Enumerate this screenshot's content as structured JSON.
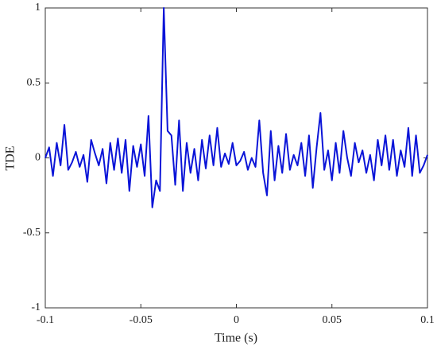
{
  "chart_data": {
    "type": "line",
    "xlabel": "Time (s)",
    "ylabel": "TDE",
    "xlim": [
      -0.1,
      0.1
    ],
    "ylim": [
      -1,
      1
    ],
    "xticks": [
      -0.1,
      -0.05,
      0,
      0.05,
      0.1
    ],
    "yticks": [
      -1,
      -0.5,
      0,
      0.5,
      1
    ],
    "grid": false,
    "series": [
      {
        "name": "TDE",
        "color": "#0a14d8",
        "x": [
          -0.1,
          -0.098,
          -0.096,
          -0.094,
          -0.092,
          -0.09,
          -0.088,
          -0.086,
          -0.084,
          -0.082,
          -0.08,
          -0.078,
          -0.076,
          -0.074,
          -0.072,
          -0.07,
          -0.068,
          -0.066,
          -0.064,
          -0.062,
          -0.06,
          -0.058,
          -0.056,
          -0.054,
          -0.052,
          -0.05,
          -0.048,
          -0.046,
          -0.044,
          -0.042,
          -0.04,
          -0.038,
          -0.036,
          -0.034,
          -0.032,
          -0.03,
          -0.028,
          -0.026,
          -0.024,
          -0.022,
          -0.02,
          -0.018,
          -0.016,
          -0.014,
          -0.012,
          -0.01,
          -0.008,
          -0.006,
          -0.004,
          -0.002,
          0,
          0.002,
          0.004,
          0.006,
          0.008,
          0.01,
          0.012,
          0.014,
          0.016,
          0.018,
          0.02,
          0.022,
          0.024,
          0.026,
          0.028,
          0.03,
          0.032,
          0.034,
          0.036,
          0.038,
          0.04,
          0.042,
          0.044,
          0.046,
          0.048,
          0.05,
          0.052,
          0.054,
          0.056,
          0.058,
          0.06,
          0.062,
          0.064,
          0.066,
          0.068,
          0.07,
          0.072,
          0.074,
          0.076,
          0.078,
          0.08,
          0.082,
          0.084,
          0.086,
          0.088,
          0.09,
          0.092,
          0.094,
          0.096,
          0.098,
          0.1
        ],
        "values": [
          0.0,
          0.07,
          -0.12,
          0.1,
          -0.05,
          0.22,
          -0.08,
          -0.03,
          0.04,
          -0.06,
          0.02,
          -0.16,
          0.12,
          0.03,
          -0.05,
          0.06,
          -0.17,
          0.1,
          -0.08,
          0.13,
          -0.1,
          0.12,
          -0.22,
          0.08,
          -0.06,
          0.09,
          -0.12,
          0.28,
          -0.33,
          -0.15,
          -0.22,
          1.0,
          0.18,
          0.15,
          -0.18,
          0.25,
          -0.22,
          0.1,
          -0.1,
          0.06,
          -0.15,
          0.12,
          -0.07,
          0.15,
          -0.05,
          0.2,
          -0.06,
          0.03,
          -0.04,
          0.1,
          -0.05,
          -0.02,
          0.04,
          -0.08,
          0.0,
          -0.06,
          0.25,
          -0.1,
          -0.25,
          0.18,
          -0.15,
          0.08,
          -0.1,
          0.16,
          -0.08,
          0.02,
          -0.05,
          0.1,
          -0.12,
          0.15,
          -0.2,
          0.07,
          0.3,
          -0.08,
          0.05,
          -0.15,
          0.1,
          -0.1,
          0.18,
          0.0,
          -0.12,
          0.1,
          -0.03,
          0.05,
          -0.1,
          0.02,
          -0.15,
          0.12,
          -0.05,
          0.15,
          -0.08,
          0.12,
          -0.12,
          0.05,
          -0.06,
          0.2,
          -0.12,
          0.15,
          -0.1,
          -0.05,
          0.02
        ]
      }
    ]
  }
}
